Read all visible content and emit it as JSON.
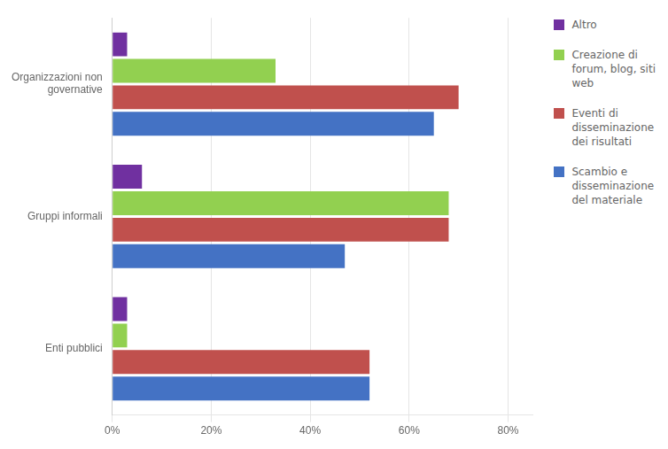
{
  "chart_data": {
    "type": "bar",
    "orientation": "horizontal",
    "categories": [
      "Organizzazioni non\ngovernative",
      "Gruppi informali",
      "Enti pubblici"
    ],
    "series": [
      {
        "name": "Altro",
        "color": "#7030A0",
        "values": [
          0.03,
          0.06,
          0.03
        ]
      },
      {
        "name": "Creazione di\nforum, blog, siti\nweb",
        "color": "#92D050",
        "values": [
          0.33,
          0.68,
          0.03
        ]
      },
      {
        "name": "Eventi di\ndisseminazione\ndei risultati",
        "color": "#C0504D",
        "values": [
          0.7,
          0.68,
          0.52
        ]
      },
      {
        "name": "Scambio e\ndisseminazione\ndel materiale",
        "color": "#4472C4",
        "values": [
          0.65,
          0.47,
          0.52
        ]
      }
    ],
    "xlim": [
      0,
      0.85
    ],
    "xticks": [
      {
        "value": 0.0,
        "label": "0%"
      },
      {
        "value": 0.2,
        "label": "20%"
      },
      {
        "value": 0.4,
        "label": "40%"
      },
      {
        "value": 0.6,
        "label": "60%"
      },
      {
        "value": 0.8,
        "label": "80%"
      }
    ],
    "grid": true,
    "legend": "right"
  }
}
